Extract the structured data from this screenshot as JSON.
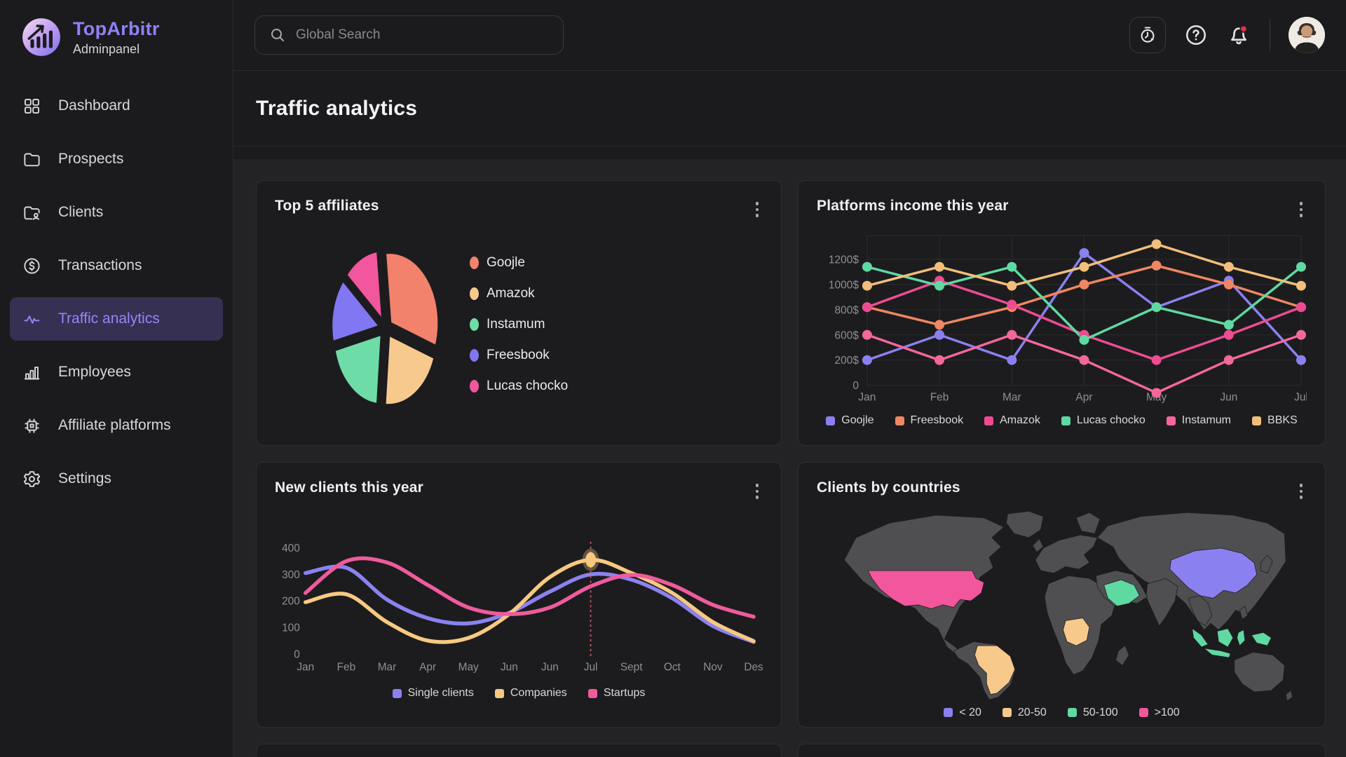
{
  "brand": {
    "name": "TopArbitr",
    "subtitle": "Adminpanel"
  },
  "sidebar": {
    "items": [
      {
        "label": "Dashboard",
        "icon": "dashboard-grid-icon",
        "active": false
      },
      {
        "label": "Prospects",
        "icon": "folder-icon",
        "active": false
      },
      {
        "label": "Clients",
        "icon": "folder-user-icon",
        "active": false
      },
      {
        "label": "Transactions",
        "icon": "dollar-circle-icon",
        "active": false
      },
      {
        "label": "Traffic analytics",
        "icon": "activity-icon",
        "active": true
      },
      {
        "label": "Employees",
        "icon": "bar-chart-icon",
        "active": false
      },
      {
        "label": "Affiliate platforms",
        "icon": "chip-icon",
        "active": false
      },
      {
        "label": "Settings",
        "icon": "gear-icon",
        "active": false
      }
    ]
  },
  "topbar": {
    "search_placeholder": "Global Search",
    "icons": [
      "timelapse-icon",
      "help-icon",
      "bell-icon"
    ],
    "has_notification": true
  },
  "page": {
    "title": "Traffic analytics"
  },
  "colors": {
    "accent": "#8F82F4",
    "notification_dot": "#E2314A",
    "card_bg": "#1C1C1E",
    "grid_line": "#2D2D2F",
    "muted_text": "#909092"
  },
  "chart_data": [
    {
      "id": "top5-affiliates",
      "type": "pie",
      "title": "Top 5 affiliates",
      "legend_position": "right",
      "start_angle": -6,
      "slices": [
        {
          "label": "Goojle",
          "value": 32,
          "color": "#F2826C"
        },
        {
          "label": "Amazok",
          "value": 21,
          "color": "#F8C98D"
        },
        {
          "label": "Instamum",
          "value": 20,
          "color": "#6EDCA7"
        },
        {
          "label": "Freesbook",
          "value": 15,
          "color": "#8177F2"
        },
        {
          "label": "Lucas chocko",
          "value": 12,
          "color": "#F2569C"
        }
      ]
    },
    {
      "id": "platforms-income",
      "type": "line",
      "title": "Platforms income this year",
      "categories": [
        "Jan",
        "Feb",
        "Mar",
        "Apr",
        "May",
        "Jun",
        "Jul"
      ],
      "y_ticks": [
        "0",
        "200$",
        "600$",
        "800$",
        "1000$",
        "1200$"
      ],
      "y_anchor_values": [
        0,
        200,
        600,
        800,
        1000,
        1200
      ],
      "grid": true,
      "legend_position": "bottom",
      "series": [
        {
          "name": "Goojle",
          "color": "#8B80F0",
          "values": [
            200,
            600,
            200,
            1250,
            820,
            1030,
            200
          ]
        },
        {
          "name": "Freesbook",
          "color": "#F08662",
          "values": [
            820,
            680,
            820,
            1000,
            1150,
            1000,
            820
          ]
        },
        {
          "name": "Amazok",
          "color": "#ED4C92",
          "values": [
            820,
            1030,
            840,
            600,
            200,
            600,
            820
          ]
        },
        {
          "name": "Lucas chocko",
          "color": "#5FD9A2",
          "values": [
            1140,
            990,
            1140,
            520,
            820,
            680,
            1140
          ]
        },
        {
          "name": "Instamum",
          "color": "#F4679D",
          "values": [
            600,
            200,
            600,
            200,
            -60,
            200,
            600
          ]
        },
        {
          "name": "BBKS",
          "color": "#F2BE7B",
          "values": [
            990,
            1140,
            990,
            1140,
            1320,
            1140,
            990
          ]
        }
      ]
    },
    {
      "id": "new-clients",
      "type": "line",
      "smooth": true,
      "title": "New clients this year",
      "categories": [
        "Jan",
        "Feb",
        "Mar",
        "Apr",
        "May",
        "Jun",
        "Jun",
        "Jul",
        "Sept",
        "Oct",
        "Nov",
        "Des"
      ],
      "y_ticks": [
        "0",
        "100",
        "200",
        "300",
        "400"
      ],
      "y_anchor_values": [
        0,
        100,
        200,
        300,
        400
      ],
      "grid": false,
      "legend_position": "bottom",
      "highlight": {
        "series": 1,
        "index": 7,
        "line_color": "#C9556B"
      },
      "series": [
        {
          "name": "Single clients",
          "color": "#8B82F0",
          "values": [
            305,
            325,
            205,
            135,
            115,
            155,
            235,
            300,
            280,
            210,
            105,
            45
          ]
        },
        {
          "name": "Companies",
          "color": "#F7C981",
          "values": [
            195,
            225,
            120,
            50,
            60,
            150,
            290,
            355,
            305,
            230,
            120,
            48
          ]
        },
        {
          "name": "Startups",
          "color": "#EF5B9C",
          "values": [
            230,
            350,
            345,
            260,
            175,
            150,
            175,
            255,
            298,
            260,
            185,
            140
          ]
        }
      ]
    },
    {
      "id": "clients-by-countries",
      "type": "choropleth",
      "title": "Clients by countries",
      "legend_position": "bottom",
      "legend": [
        {
          "label": "< 20",
          "color": "#8B80F0"
        },
        {
          "label": "20-50",
          "color": "#F7C98B"
        },
        {
          "label": "50-100",
          "color": "#5FD9A2"
        },
        {
          "label": ">100",
          "color": "#F2569C"
        }
      ],
      "regions": [
        {
          "name": "United States",
          "key": "usa",
          "bucket": ">100"
        },
        {
          "name": "Brazil",
          "key": "brazil",
          "bucket": "20-50"
        },
        {
          "name": "DR Congo",
          "key": "congo",
          "bucket": "20-50"
        },
        {
          "name": "Saudi Arabia",
          "key": "saudi",
          "bucket": "50-100"
        },
        {
          "name": "China",
          "key": "china",
          "bucket": "< 20"
        },
        {
          "name": "Indonesia",
          "key": "indonesia",
          "bucket": "50-100"
        }
      ]
    }
  ]
}
